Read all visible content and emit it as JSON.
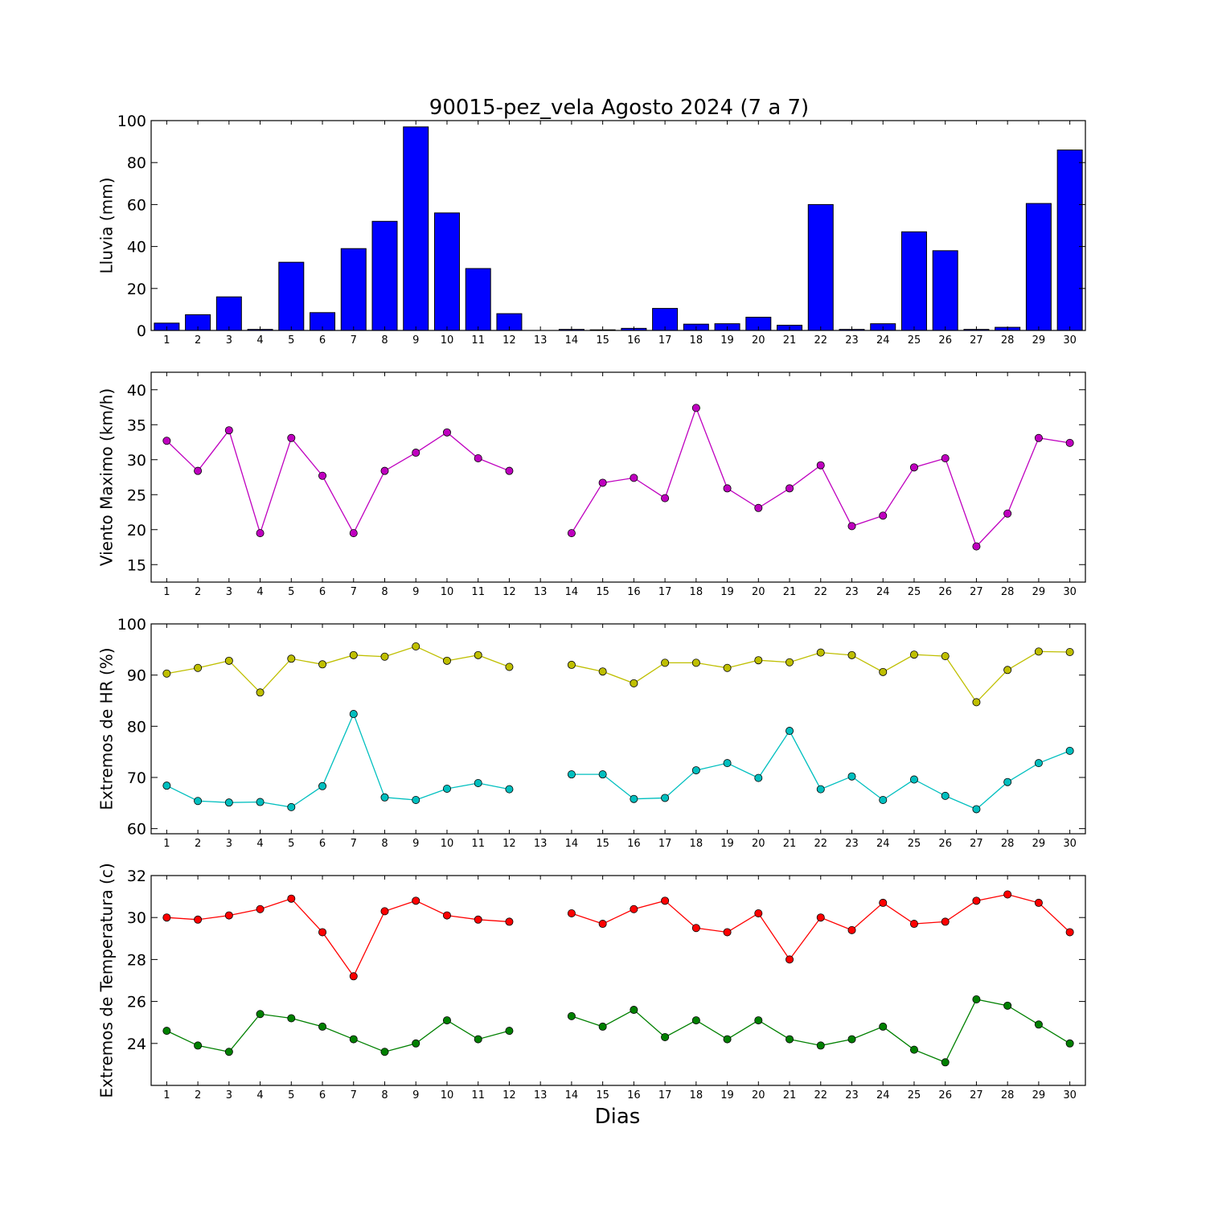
{
  "title": "90015-pez_vela Agosto 2024  (7 a 7)",
  "xlabel": "Dias",
  "colors": {
    "bar": "#0000ff",
    "wind": "#bf00bf",
    "hr_max": "#bfbf00",
    "hr_min": "#00bfbf",
    "t_max": "#ff0000",
    "t_min": "#008000"
  },
  "chart_data": [
    {
      "type": "bar",
      "ylabel": "Lluvia (mm)",
      "ylim": [
        0,
        100
      ],
      "yticks": [
        0,
        20,
        40,
        60,
        80,
        100
      ],
      "categories": [
        1,
        2,
        3,
        4,
        5,
        6,
        7,
        8,
        9,
        10,
        11,
        12,
        13,
        14,
        15,
        16,
        17,
        18,
        19,
        20,
        21,
        22,
        23,
        24,
        25,
        26,
        27,
        28,
        29,
        30
      ],
      "values": [
        3.5,
        7.5,
        16,
        0.5,
        32.5,
        8.5,
        39,
        52,
        97,
        56,
        29.5,
        8,
        0,
        0.5,
        0.3,
        1,
        10.5,
        3,
        3.2,
        6.3,
        2.5,
        60,
        0.5,
        3.2,
        47,
        38,
        0.5,
        1.5,
        60.5,
        86
      ]
    },
    {
      "type": "line",
      "ylabel": "Viento Maximo (km/h)",
      "ylim": [
        12.5,
        42.5
      ],
      "yticks": [
        15,
        20,
        25,
        30,
        35,
        40
      ],
      "x": [
        1,
        2,
        3,
        4,
        5,
        6,
        7,
        8,
        9,
        10,
        11,
        12,
        13,
        14,
        15,
        16,
        17,
        18,
        19,
        20,
        21,
        22,
        23,
        24,
        25,
        26,
        27,
        28,
        29,
        30
      ],
      "series": [
        {
          "color_key": "wind",
          "values": [
            32.7,
            28.4,
            34.2,
            19.5,
            33.1,
            27.7,
            19.5,
            28.4,
            31,
            33.9,
            30.2,
            28.4,
            null,
            19.5,
            26.7,
            27.4,
            24.5,
            37.4,
            25.9,
            23.1,
            25.9,
            29.2,
            20.5,
            22,
            28.9,
            30.2,
            17.6,
            22.3,
            33.1,
            32.4
          ]
        }
      ]
    },
    {
      "type": "line",
      "ylabel": "Extremos de HR (%)",
      "ylim": [
        59,
        100
      ],
      "yticks": [
        60,
        70,
        80,
        90,
        100
      ],
      "x": [
        1,
        2,
        3,
        4,
        5,
        6,
        7,
        8,
        9,
        10,
        11,
        12,
        13,
        14,
        15,
        16,
        17,
        18,
        19,
        20,
        21,
        22,
        23,
        24,
        25,
        26,
        27,
        28,
        29,
        30
      ],
      "series": [
        {
          "color_key": "hr_max",
          "values": [
            90.3,
            91.4,
            92.8,
            86.6,
            93.2,
            92.1,
            93.9,
            93.6,
            95.6,
            92.8,
            93.9,
            91.6,
            null,
            92,
            90.7,
            88.4,
            92.4,
            92.4,
            91.4,
            92.9,
            92.5,
            94.4,
            93.9,
            90.6,
            94,
            93.7,
            84.7,
            91,
            94.6,
            94.5
          ]
        },
        {
          "color_key": "hr_min",
          "values": [
            68.4,
            65.4,
            65.1,
            65.2,
            64.2,
            68.3,
            82.4,
            66.1,
            65.6,
            67.8,
            68.9,
            67.7,
            null,
            70.6,
            70.6,
            65.8,
            66,
            71.4,
            72.8,
            69.9,
            79.1,
            67.7,
            70.2,
            65.6,
            69.6,
            66.4,
            63.8,
            69.1,
            72.8,
            75.2
          ]
        }
      ]
    },
    {
      "type": "line",
      "ylabel": "Extremos de Temperatura (c)",
      "ylim": [
        22,
        32
      ],
      "yticks": [
        24,
        26,
        28,
        30,
        32
      ],
      "x": [
        1,
        2,
        3,
        4,
        5,
        6,
        7,
        8,
        9,
        10,
        11,
        12,
        13,
        14,
        15,
        16,
        17,
        18,
        19,
        20,
        21,
        22,
        23,
        24,
        25,
        26,
        27,
        28,
        29,
        30
      ],
      "series": [
        {
          "color_key": "t_max",
          "values": [
            30,
            29.9,
            30.1,
            30.4,
            30.9,
            29.3,
            27.2,
            30.3,
            30.8,
            30.1,
            29.9,
            29.8,
            null,
            30.2,
            29.7,
            30.4,
            30.8,
            29.5,
            29.3,
            30.2,
            28,
            30,
            29.4,
            30.7,
            29.7,
            29.8,
            30.8,
            31.1,
            30.7,
            29.3
          ]
        },
        {
          "color_key": "t_min",
          "values": [
            24.6,
            23.9,
            23.6,
            25.4,
            25.2,
            24.8,
            24.2,
            23.6,
            24,
            25.1,
            24.2,
            24.6,
            null,
            25.3,
            24.8,
            25.6,
            24.3,
            25.1,
            24.2,
            25.1,
            24.2,
            23.9,
            24.2,
            24.8,
            23.7,
            23.1,
            26.1,
            25.8,
            24.9,
            24
          ]
        }
      ]
    }
  ]
}
